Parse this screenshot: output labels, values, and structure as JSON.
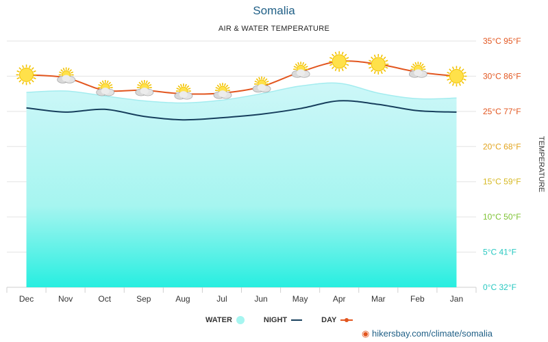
{
  "title": "Somalia",
  "subtitle": "AIR & WATER TEMPERATURE",
  "source": "hikersbay.com/climate/somalia",
  "colors": {
    "day": "#e2551e",
    "night": "#163e5c",
    "water_top": "#bdf4f6",
    "water_bottom": "#27eee0",
    "title": "#1f5f86"
  },
  "legend": {
    "day": "DAY",
    "night": "NIGHT",
    "water": "WATER"
  },
  "chart_data": {
    "type": "line",
    "categories": [
      "Dec",
      "Nov",
      "Oct",
      "Sep",
      "Aug",
      "Jul",
      "Jun",
      "May",
      "Apr",
      "Mar",
      "Feb",
      "Jan"
    ],
    "ylabel": "TEMPERATURE",
    "ylim": [
      0,
      35
    ],
    "y_ticks": [
      {
        "c": 35,
        "label": "35°C 95°F",
        "color": "#e2551e"
      },
      {
        "c": 30,
        "label": "30°C 86°F",
        "color": "#e2551e"
      },
      {
        "c": 25,
        "label": "25°C 77°F",
        "color": "#e2551e"
      },
      {
        "c": 20,
        "label": "20°C 68°F",
        "color": "#e2a41e"
      },
      {
        "c": 15,
        "label": "15°C 59°F",
        "color": "#d6b821"
      },
      {
        "c": 10,
        "label": "10°C 50°F",
        "color": "#7ec233"
      },
      {
        "c": 5,
        "label": "5°C 41°F",
        "color": "#27c8c1"
      },
      {
        "c": 0,
        "label": "0°C 32°F",
        "color": "#27c8c1"
      }
    ],
    "series": [
      {
        "name": "DAY",
        "values": [
          30.2,
          29.8,
          28.0,
          28.0,
          27.5,
          27.6,
          28.5,
          30.6,
          32.1,
          31.7,
          30.6,
          30.0
        ]
      },
      {
        "name": "NIGHT",
        "values": [
          25.5,
          24.9,
          25.3,
          24.3,
          23.8,
          24.1,
          24.6,
          25.4,
          26.5,
          26.0,
          25.1,
          24.9
        ]
      },
      {
        "name": "WATER",
        "values": [
          27.7,
          27.9,
          27.2,
          26.5,
          26.2,
          26.6,
          27.5,
          28.6,
          29.0,
          27.6,
          26.8,
          26.9
        ]
      }
    ],
    "weather_icons": [
      "sun-icon",
      "partly-cloudy-icon",
      "partly-cloudy-icon",
      "partly-cloudy-icon",
      "partly-cloudy-icon",
      "partly-cloudy-icon",
      "partly-cloudy-icon",
      "partly-cloudy-icon",
      "sun-icon",
      "sun-icon",
      "partly-cloudy-icon",
      "sun-icon"
    ],
    "grid": true,
    "legend_position": "bottom"
  }
}
